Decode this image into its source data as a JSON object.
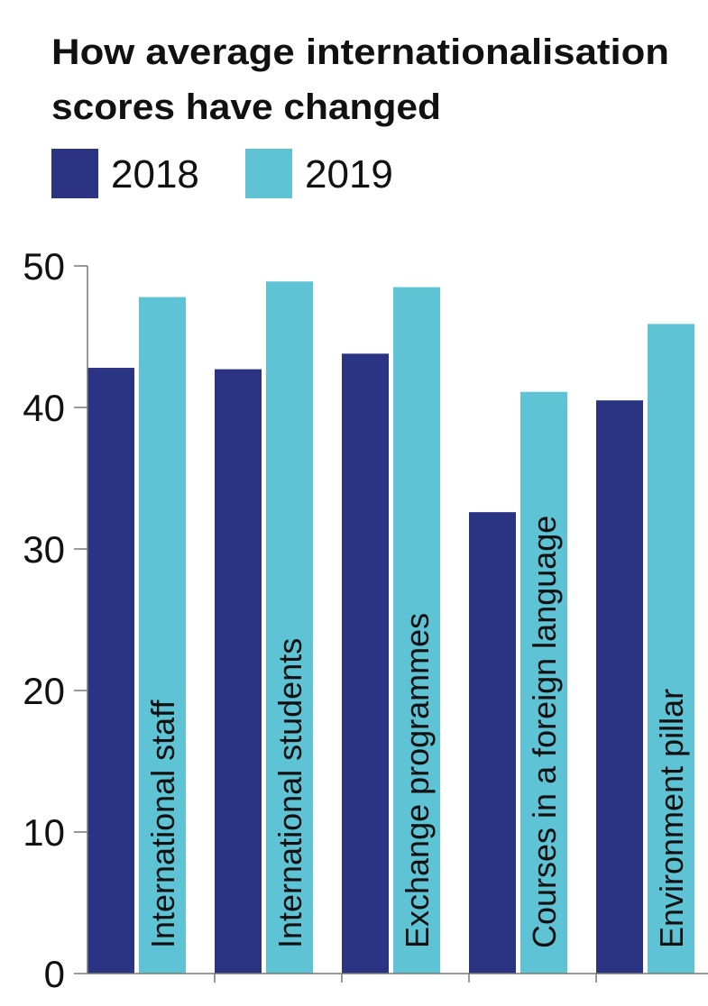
{
  "chart_data": {
    "type": "bar",
    "title_lines": [
      "How average internationalisation",
      "scores have changed"
    ],
    "categories": [
      "International staff",
      "International students",
      "Exchange programmes",
      "Courses in a foreign language",
      "Environment pillar"
    ],
    "series": [
      {
        "name": "2018",
        "color": "#2b3383",
        "values": [
          42.8,
          42.7,
          43.8,
          32.6,
          40.5
        ]
      },
      {
        "name": "2019",
        "color": "#5ec3d4",
        "values": [
          47.8,
          48.9,
          48.5,
          41.1,
          45.9
        ]
      }
    ],
    "ylim": [
      0,
      50
    ],
    "yticks": [
      0,
      10,
      20,
      30,
      40,
      50
    ],
    "legend": "top-left"
  }
}
